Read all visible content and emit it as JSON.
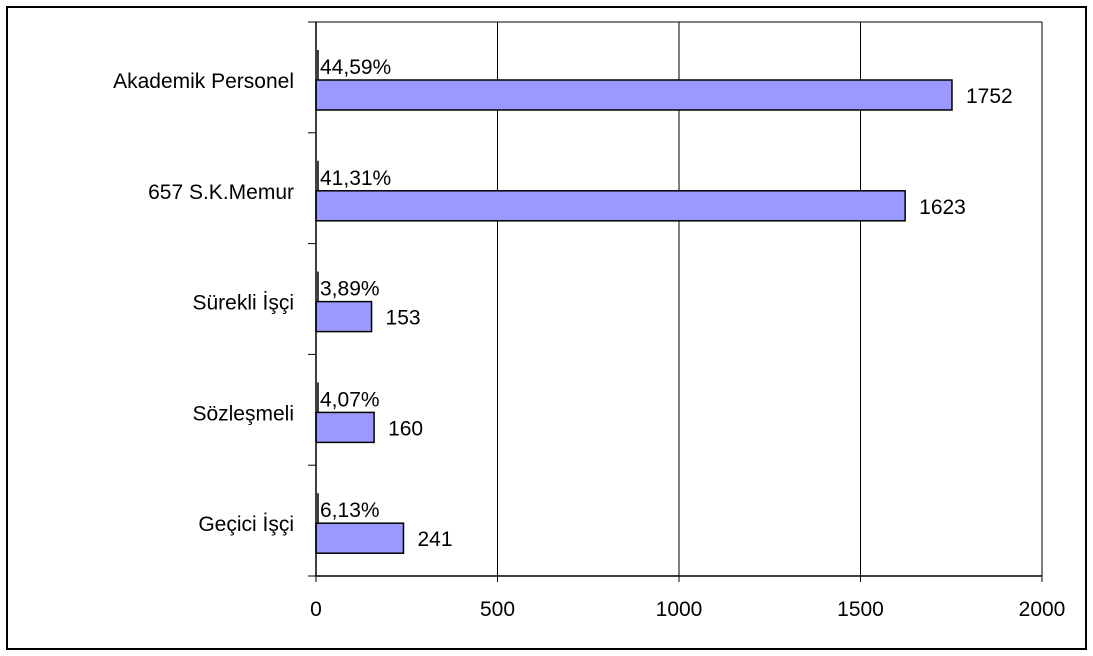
{
  "chart_data": {
    "type": "bar",
    "orientation": "horizontal",
    "categories": [
      "Akademik Personel",
      "657 S.K.Memur",
      "Sürekli İşçi",
      "Sözleşmeli",
      "Geçici İşçi"
    ],
    "values": [
      1752,
      1623,
      153,
      160,
      241
    ],
    "value_labels": [
      "1752",
      "1623",
      "153",
      "160",
      "241"
    ],
    "percent_labels": [
      "44,59%",
      "41,31%",
      "3,89%",
      "4,07%",
      "6,13%"
    ],
    "title": "",
    "xlabel": "",
    "ylabel": "",
    "xlim": [
      0,
      2000
    ],
    "x_ticks": [
      0,
      500,
      1000,
      1500,
      2000
    ],
    "x_tick_labels": [
      "0",
      "500",
      "1000",
      "1500",
      "2000"
    ],
    "grid": "vertical",
    "legend": "none",
    "colors": {
      "bar_fill": "#9999ff",
      "bar_stroke": "#000000",
      "grid": "#000000",
      "background": "#ffffff"
    }
  }
}
